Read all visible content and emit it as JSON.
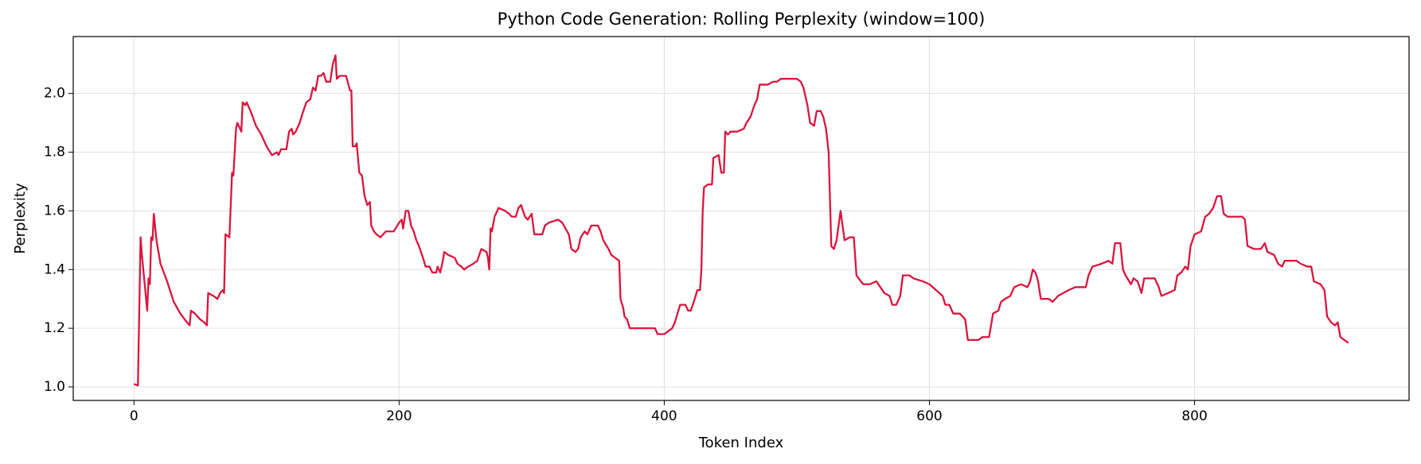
{
  "chart_data": {
    "type": "line",
    "title": "Python Code Generation: Rolling Perplexity (window=100)",
    "xlabel": "Token Index",
    "ylabel": "Perplexity",
    "color": "#dc143c",
    "grid": true,
    "xlim": [
      -45.8,
      961.8
    ],
    "ylim": [
      0.954,
      2.194
    ],
    "xticks": [
      0,
      200,
      400,
      600,
      800
    ],
    "yticks": [
      {
        "value": 1.0,
        "label": "1.0"
      },
      1.2,
      1.4,
      1.6,
      1.8,
      {
        "value": 2.0,
        "label": "2.0"
      }
    ],
    "x": [
      0,
      3,
      5,
      6,
      10,
      11,
      12,
      13,
      14,
      15,
      17,
      20,
      25,
      30,
      35,
      40,
      42,
      43,
      46,
      50,
      53,
      55,
      56,
      60,
      63,
      65,
      67,
      68,
      69,
      72,
      74,
      75,
      77,
      78,
      80,
      81,
      82,
      84,
      85,
      88,
      92,
      96,
      100,
      104,
      108,
      109,
      111,
      115,
      117,
      119,
      120,
      122,
      125,
      127,
      130,
      133,
      135,
      137,
      139,
      141,
      143,
      145,
      148,
      150,
      152,
      153,
      155,
      160,
      163,
      164,
      165,
      167,
      168,
      170,
      172,
      174,
      176,
      178,
      179,
      181,
      183,
      186,
      188,
      190,
      193,
      196,
      200,
      202,
      203,
      205,
      207,
      209,
      211,
      213,
      215,
      218,
      220,
      223,
      225,
      228,
      229,
      231,
      233,
      234,
      237,
      242,
      244,
      247,
      249,
      252,
      256,
      259,
      262,
      266,
      267,
      268,
      269,
      270,
      272,
      275,
      280,
      283,
      285,
      288,
      290,
      292,
      295,
      297,
      300,
      302,
      305,
      308,
      310,
      313,
      320,
      323,
      328,
      330,
      333,
      335,
      337,
      340,
      342,
      345,
      348,
      350,
      352,
      354,
      358,
      360,
      363,
      366,
      367,
      369,
      370,
      372,
      374,
      380,
      385,
      390,
      393,
      395,
      398,
      400,
      403,
      406,
      408,
      410,
      412,
      416,
      418,
      420,
      423,
      425,
      427,
      428,
      429,
      430,
      433,
      436,
      437,
      441,
      443,
      445,
      446,
      448,
      450,
      455,
      460,
      462,
      465,
      468,
      470,
      472,
      478,
      482,
      485,
      488,
      495,
      500,
      503,
      505,
      508,
      510,
      513,
      515,
      518,
      520,
      522,
      524,
      526,
      528,
      530,
      533,
      536,
      540,
      543,
      545,
      550,
      555,
      560,
      563,
      566,
      570,
      572,
      575,
      578,
      580,
      585,
      588,
      595,
      600,
      605,
      610,
      612,
      615,
      618,
      623,
      627,
      629,
      633,
      637,
      640,
      645,
      648,
      652,
      654,
      657,
      661,
      664,
      669,
      674,
      676,
      678,
      680,
      682,
      684,
      690,
      693,
      697,
      705,
      710,
      718,
      720,
      723,
      730,
      735,
      738,
      740,
      744,
      746,
      748,
      752,
      754,
      757,
      760,
      762,
      767,
      770,
      773,
      775,
      780,
      785,
      787,
      790,
      793,
      795,
      797,
      800,
      805,
      808,
      811,
      814,
      817,
      820,
      822,
      825,
      830,
      836,
      838,
      840,
      845,
      850,
      853,
      855,
      860,
      863,
      866,
      868,
      872,
      877,
      880,
      885,
      888,
      890,
      895,
      898,
      900,
      903,
      906,
      908,
      910,
      913,
      916
    ],
    "values": [
      1.01,
      1.005,
      1.51,
      1.45,
      1.26,
      1.37,
      1.35,
      1.51,
      1.5,
      1.59,
      1.5,
      1.42,
      1.36,
      1.29,
      1.25,
      1.22,
      1.21,
      1.26,
      1.25,
      1.23,
      1.22,
      1.21,
      1.32,
      1.31,
      1.3,
      1.32,
      1.33,
      1.32,
      1.52,
      1.51,
      1.73,
      1.72,
      1.88,
      1.9,
      1.88,
      1.87,
      1.97,
      1.96,
      1.97,
      1.94,
      1.89,
      1.86,
      1.82,
      1.79,
      1.8,
      1.79,
      1.81,
      1.81,
      1.87,
      1.88,
      1.86,
      1.87,
      1.9,
      1.93,
      1.97,
      1.98,
      2.02,
      2.01,
      2.06,
      2.06,
      2.07,
      2.04,
      2.04,
      2.1,
      2.13,
      2.05,
      2.06,
      2.06,
      2.01,
      2.01,
      1.82,
      1.82,
      1.83,
      1.73,
      1.72,
      1.65,
      1.62,
      1.63,
      1.55,
      1.53,
      1.52,
      1.51,
      1.52,
      1.53,
      1.53,
      1.53,
      1.56,
      1.57,
      1.54,
      1.6,
      1.6,
      1.55,
      1.53,
      1.5,
      1.48,
      1.44,
      1.41,
      1.41,
      1.39,
      1.39,
      1.41,
      1.39,
      1.43,
      1.46,
      1.45,
      1.44,
      1.42,
      1.41,
      1.4,
      1.41,
      1.42,
      1.43,
      1.47,
      1.46,
      1.44,
      1.4,
      1.54,
      1.53,
      1.58,
      1.61,
      1.6,
      1.59,
      1.58,
      1.58,
      1.61,
      1.62,
      1.58,
      1.57,
      1.59,
      1.52,
      1.52,
      1.52,
      1.55,
      1.56,
      1.57,
      1.56,
      1.52,
      1.47,
      1.46,
      1.47,
      1.51,
      1.53,
      1.52,
      1.55,
      1.55,
      1.55,
      1.53,
      1.5,
      1.47,
      1.45,
      1.44,
      1.43,
      1.3,
      1.27,
      1.24,
      1.23,
      1.2,
      1.2,
      1.2,
      1.2,
      1.2,
      1.18,
      1.18,
      1.18,
      1.19,
      1.2,
      1.22,
      1.25,
      1.28,
      1.28,
      1.26,
      1.26,
      1.3,
      1.33,
      1.33,
      1.4,
      1.6,
      1.68,
      1.69,
      1.69,
      1.78,
      1.79,
      1.73,
      1.73,
      1.87,
      1.86,
      1.87,
      1.87,
      1.88,
      1.9,
      1.92,
      1.96,
      1.98,
      2.03,
      2.03,
      2.04,
      2.04,
      2.05,
      2.05,
      2.05,
      2.04,
      2.02,
      1.96,
      1.9,
      1.89,
      1.94,
      1.94,
      1.92,
      1.88,
      1.8,
      1.48,
      1.47,
      1.5,
      1.6,
      1.5,
      1.51,
      1.51,
      1.38,
      1.35,
      1.35,
      1.36,
      1.34,
      1.32,
      1.31,
      1.28,
      1.28,
      1.31,
      1.38,
      1.38,
      1.37,
      1.36,
      1.35,
      1.33,
      1.31,
      1.28,
      1.28,
      1.25,
      1.25,
      1.23,
      1.16,
      1.16,
      1.16,
      1.17,
      1.17,
      1.25,
      1.26,
      1.29,
      1.3,
      1.31,
      1.34,
      1.35,
      1.34,
      1.36,
      1.4,
      1.39,
      1.36,
      1.3,
      1.3,
      1.29,
      1.31,
      1.33,
      1.34,
      1.34,
      1.38,
      1.41,
      1.42,
      1.43,
      1.42,
      1.49,
      1.49,
      1.4,
      1.38,
      1.35,
      1.37,
      1.36,
      1.32,
      1.37,
      1.37,
      1.37,
      1.34,
      1.31,
      1.32,
      1.33,
      1.38,
      1.39,
      1.41,
      1.4,
      1.48,
      1.52,
      1.53,
      1.58,
      1.59,
      1.61,
      1.65,
      1.65,
      1.59,
      1.58,
      1.58,
      1.58,
      1.57,
      1.48,
      1.47,
      1.47,
      1.49,
      1.46,
      1.45,
      1.42,
      1.41,
      1.43,
      1.43,
      1.43,
      1.42,
      1.41,
      1.41,
      1.36,
      1.35,
      1.33,
      1.24,
      1.22,
      1.21,
      1.22,
      1.17,
      1.16,
      1.15
    ]
  }
}
